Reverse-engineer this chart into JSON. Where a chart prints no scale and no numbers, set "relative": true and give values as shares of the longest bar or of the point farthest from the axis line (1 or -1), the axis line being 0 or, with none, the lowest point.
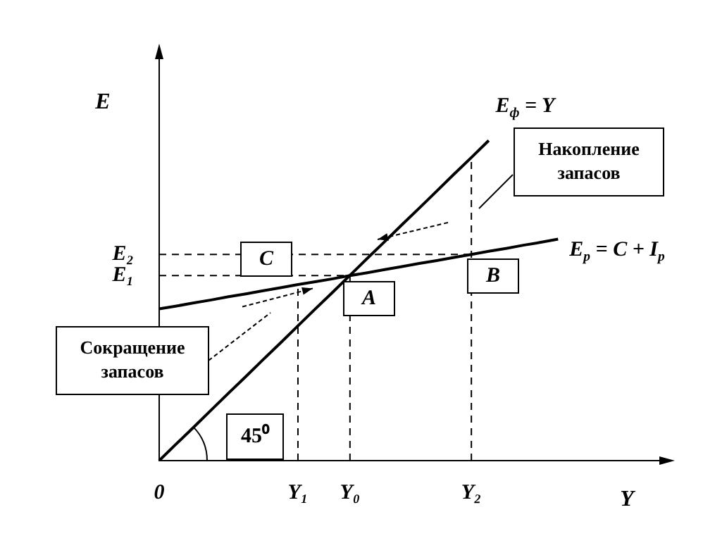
{
  "chart_data": {
    "type": "line",
    "relative": true,
    "xlabel": "Y",
    "ylabel": "E",
    "categories": [
      "0",
      null,
      null,
      null,
      null,
      null,
      null,
      null,
      "Y₁",
      null,
      null,
      "Y₀",
      null,
      null,
      null,
      null,
      null,
      null,
      "Y₂",
      null,
      null,
      null,
      null,
      null,
      null,
      null,
      null,
      null,
      null,
      null
    ],
    "series": [
      {
        "name": "E$_{ф}$ = Y",
        "color": "#000000",
        "values": [
          0,
          0.053,
          0.105,
          0.158,
          0.211,
          0.263,
          0.316,
          0.368,
          0.421,
          0.474,
          0.526,
          0.579,
          0.632,
          0.684,
          0.737,
          0.789,
          0.842,
          0.895,
          0.947,
          1,
          null,
          null,
          null,
          null,
          null,
          null,
          null,
          null,
          null,
          null
        ]
      },
      {
        "name": "E$_{р}$ = C + I$_{р}$",
        "color": "#000000",
        "values": [
          0.474,
          0.483,
          0.493,
          0.502,
          0.512,
          0.521,
          0.531,
          0.54,
          0.55,
          0.559,
          0.568,
          0.578,
          0.587,
          0.597,
          0.606,
          0.616,
          0.625,
          0.635,
          0.644,
          0.654,
          0.663,
          0.673,
          0.682,
          0.692,
          null,
          null,
          null,
          null,
          null,
          null
        ]
      }
    ],
    "ref_lines": [
      {
        "axis": "x",
        "value": "Y₁",
        "line_style": "dashed"
      },
      {
        "axis": "x",
        "value": "Y₀",
        "line_style": "dashed"
      },
      {
        "axis": "x",
        "value": "Y₂",
        "line_style": "dashed"
      },
      {
        "axis": "y",
        "value": 0.578,
        "label": "E₁",
        "line_style": "dashed"
      },
      {
        "axis": "y",
        "value": 0.644,
        "label": "E₂",
        "line_style": "dashed"
      }
    ],
    "annotations": [
      "C",
      "A",
      "B",
      "45⁰",
      "Накопление запасов",
      "Сокращение запасов"
    ],
    "marker": "none",
    "line_style": "solid"
  }
}
